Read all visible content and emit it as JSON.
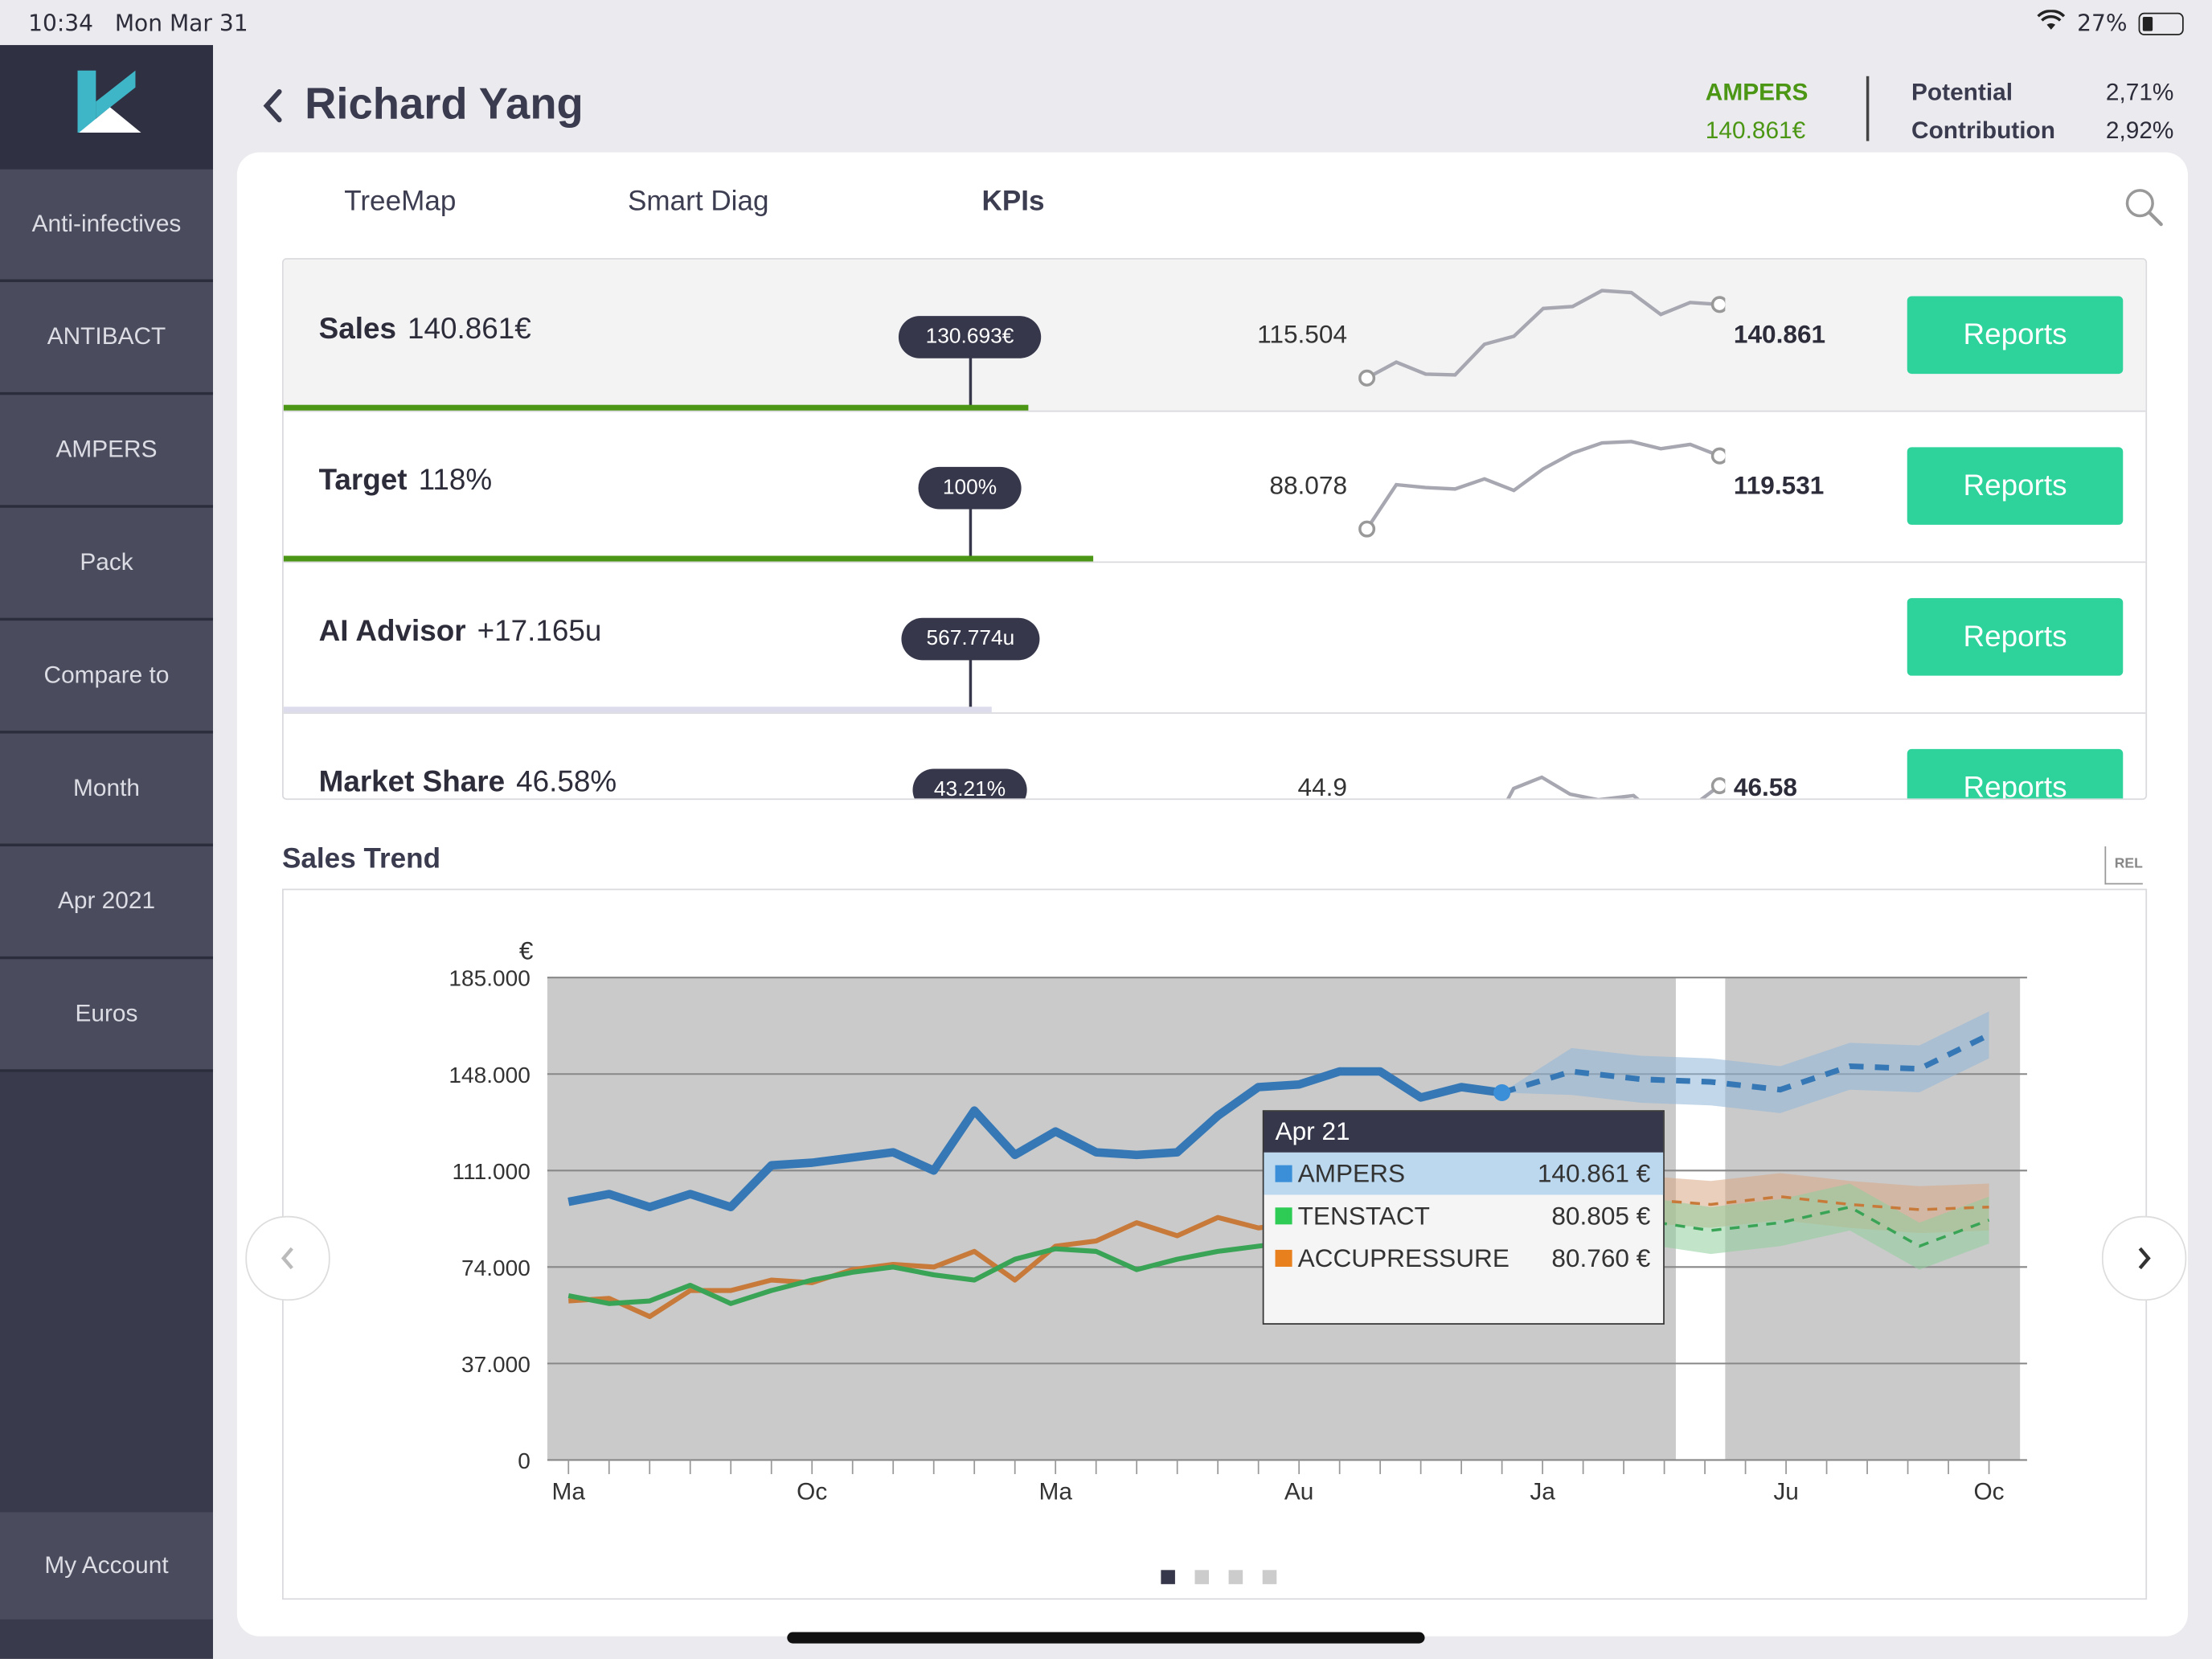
{
  "status": {
    "time": "10:34",
    "date": "Mon Mar 31",
    "battery": "27%"
  },
  "sidebar": {
    "items": [
      {
        "label": "Anti-infectives"
      },
      {
        "label": "ANTIBACT"
      },
      {
        "label": "AMPERS"
      },
      {
        "label": "Pack"
      },
      {
        "label": "Compare to"
      },
      {
        "label": "Month"
      },
      {
        "label": "Apr 2021"
      },
      {
        "label": "Euros"
      }
    ],
    "account": "My Account"
  },
  "header": {
    "title": "Richard Yang",
    "brand": "AMPERS",
    "brand_value": "140.861€",
    "potential_label": "Potential",
    "potential_value": "2,71%",
    "contribution_label": "Contribution",
    "contribution_value": "2,92%"
  },
  "tabs": [
    {
      "label": "TreeMap"
    },
    {
      "label": "Smart Diag"
    },
    {
      "label": "KPIs"
    }
  ],
  "kpis": [
    {
      "name": "Sales",
      "value": "140.861€",
      "marker": "130.693€",
      "min": "115.504",
      "max": "140.861",
      "button": "Reports",
      "progress": 0.4,
      "spark": [
        115.5,
        119.5,
        116.5,
        116.3,
        124.0,
        126.0,
        133.0,
        133.5,
        137.5,
        137.0,
        131.5,
        134.5,
        134.0
      ]
    },
    {
      "name": "Target",
      "value": "118%",
      "marker": "100%",
      "min": "88.078",
      "max": "119.531",
      "button": "Reports",
      "progress": 0.435,
      "spark": [
        88.1,
        103.5,
        102.5,
        102.0,
        105.5,
        101.5,
        109.0,
        114.5,
        118.0,
        118.5,
        116.0,
        117.5,
        113.5
      ]
    },
    {
      "name": "AI Advisor",
      "value": "+17.165u",
      "marker": "567.774u",
      "button": "Reports",
      "progress": 0.38
    },
    {
      "name": "Market Share",
      "value": "46.58%",
      "marker": "43.21%",
      "min": "44.9",
      "max": "46.58",
      "button": "Reports"
    }
  ],
  "trend": {
    "title": "Sales Trend",
    "rel": "REL",
    "tooltip": {
      "title": "Apr 21",
      "rows": [
        {
          "name": "AMPERS",
          "value": "140.861 €",
          "color": "#3a8fd8"
        },
        {
          "name": "TENSTACT",
          "value": "80.805 €",
          "color": "#2ecc55"
        },
        {
          "name": "ACCUPRESSURE",
          "value": "80.760 €",
          "color": "#e8801e"
        }
      ]
    }
  },
  "chart_data": {
    "type": "line",
    "ylabel": "€",
    "ylim": [
      0,
      185000
    ],
    "yticks": [
      "0",
      "37.000",
      "74.000",
      "111.000",
      "148.000",
      "185.000"
    ],
    "xticks": [
      "Ma",
      "Oc",
      "Ma",
      "Au",
      "Ja",
      "Ju",
      "Oc"
    ],
    "grid": true,
    "series": [
      {
        "name": "AMPERS",
        "color": "#3678b5",
        "values": [
          99000,
          102000,
          97000,
          102000,
          97000,
          113000,
          114000,
          116000,
          118000,
          111000,
          134000,
          117000,
          126000,
          118000,
          117000,
          118000,
          132000,
          143000,
          144000,
          149000,
          149000,
          139000,
          143000,
          140861
        ],
        "forecast": [
          140861,
          149000,
          146000,
          145000,
          142000,
          151000,
          150000,
          163000
        ]
      },
      {
        "name": "ACCUPRESSURE",
        "color": "#c87a3a",
        "values": [
          61000,
          62000,
          55000,
          65000,
          65000,
          69000,
          68000,
          73000,
          75000,
          74000,
          80000,
          69000,
          82000,
          84000,
          91000,
          86000,
          93000,
          89000,
          91000,
          95000,
          93000,
          94000,
          88000,
          80760
        ],
        "forecast": [
          80760,
          98000,
          100000,
          98000,
          101000,
          98000,
          96000,
          97000
        ]
      },
      {
        "name": "TENSTACT",
        "color": "#3aa456",
        "values": [
          63000,
          60000,
          61000,
          67000,
          60000,
          65000,
          69000,
          72000,
          74000,
          71000,
          69000,
          77000,
          81000,
          80000,
          73000,
          77000,
          80000,
          82000,
          84000,
          86000,
          90000,
          93000,
          87000,
          80805
        ],
        "forecast": [
          80805,
          95000,
          92000,
          88000,
          91000,
          97000,
          82000,
          92000
        ]
      }
    ]
  }
}
